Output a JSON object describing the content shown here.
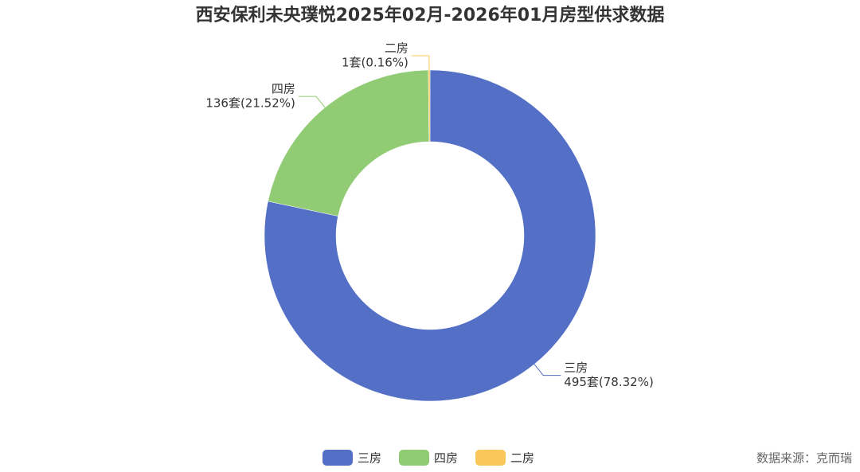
{
  "chart_data": {
    "type": "pie",
    "title": "西安保利未央璞悦2025年02月-2026年01月房型供求数据",
    "categories": [
      "三房",
      "四房",
      "二房"
    ],
    "values": [
      495,
      136,
      1
    ],
    "value_labels": [
      "495套(78.32%)",
      "136套(21.52%)",
      "1套(0.16%)"
    ],
    "colors": [
      "#5470c6",
      "#91cc75",
      "#fac858"
    ],
    "source": "数据来源：克而瑞"
  }
}
